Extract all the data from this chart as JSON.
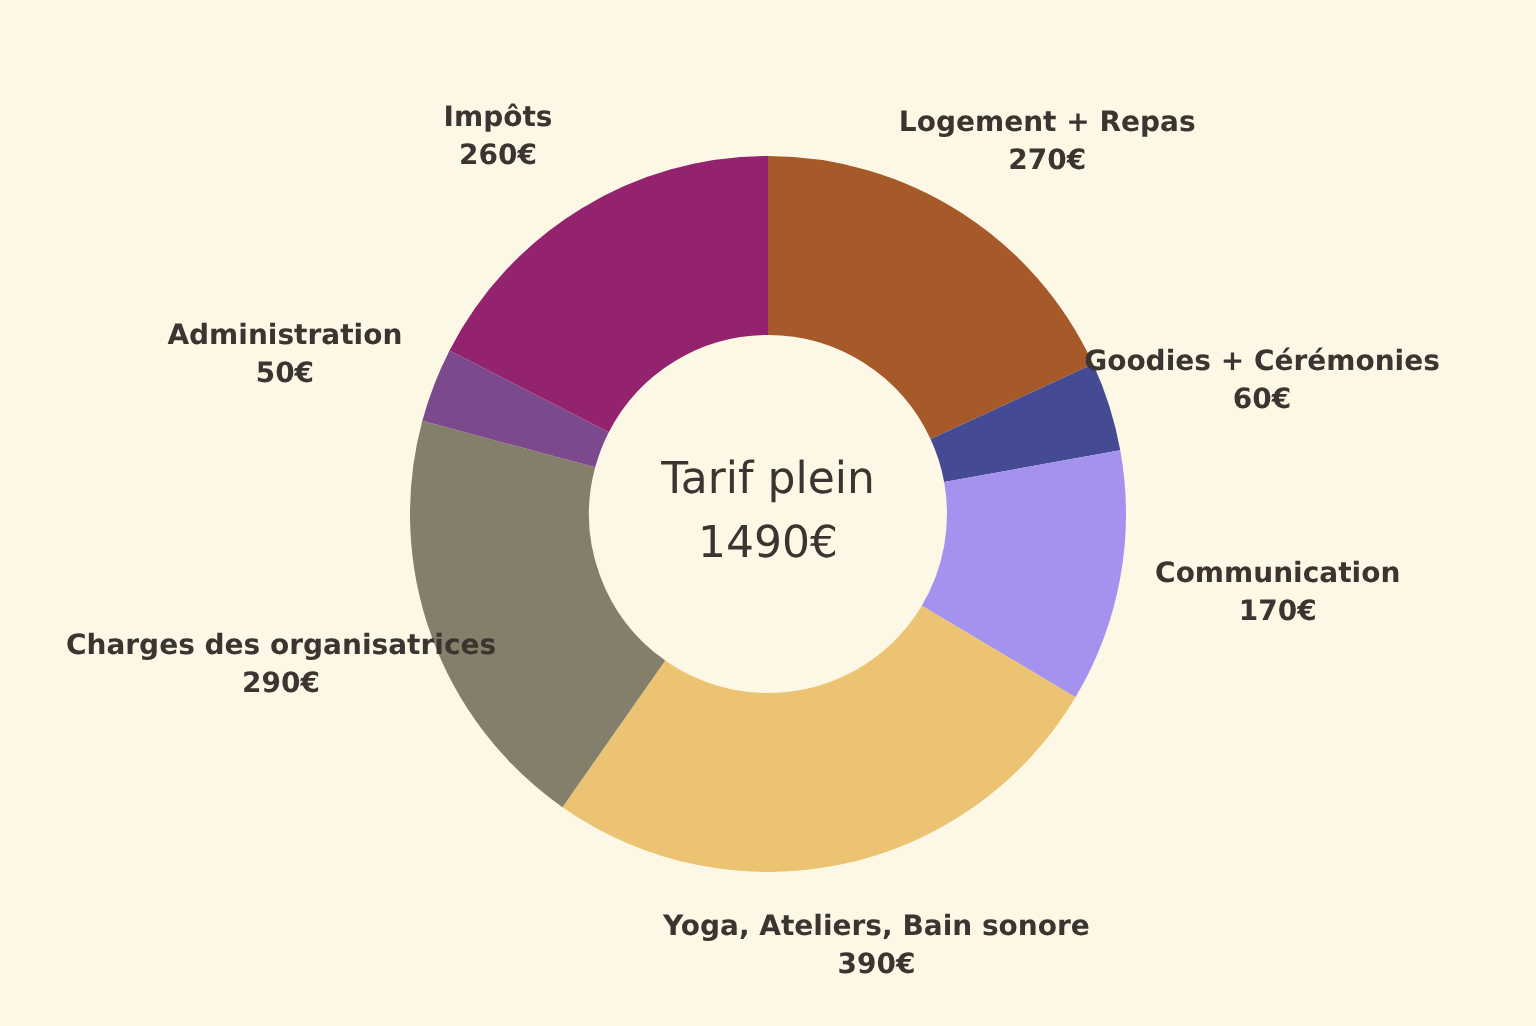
{
  "chart_data": {
    "type": "donut",
    "categories": [
      "Logement + Repas",
      "Goodies + Cérémonies",
      "Communication",
      "Yoga, Ateliers, Bain sonore",
      "Charges des organisatrices",
      "Administration",
      "Impôts"
    ],
    "values": [
      270,
      60,
      170,
      390,
      290,
      50,
      260
    ],
    "value_labels": [
      "270€",
      "60€",
      "170€",
      "390€",
      "290€",
      "50€",
      "260€"
    ],
    "colors": [
      "#a65a2a",
      "#444a94",
      "#a592ee",
      "#ebc372",
      "#847f6a",
      "#7c4a8c",
      "#93226f"
    ],
    "annotations": [
      "Tarif plein",
      "1490€"
    ],
    "legend": false
  }
}
